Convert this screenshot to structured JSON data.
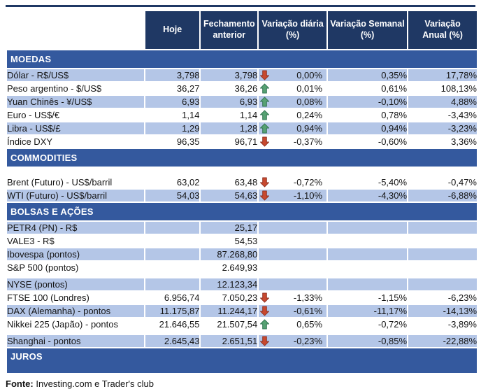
{
  "chart_data": {
    "type": "table",
    "columns": [
      "Hoje",
      "Fechamento\nanterior",
      "Variação diária\n(%)",
      "Variação Semanal\n(%)",
      "Variação\nAnual (%)"
    ],
    "sections": [
      {
        "title": "MOEDAS",
        "spacer_after_title": false,
        "rows": [
          {
            "label": "Dólar - R$/US$",
            "hoje": "3,798",
            "fechamento_anterior": "3,798",
            "direction": "down",
            "variacao_diaria": "0,00%",
            "variacao_semanal": "0,35%",
            "variacao_anual": "17,78%",
            "shaded": true
          },
          {
            "label": "Peso argentino - $/US$",
            "hoje": "36,27",
            "fechamento_anterior": "36,26",
            "direction": "up",
            "variacao_diaria": "0,01%",
            "variacao_semanal": "0,61%",
            "variacao_anual": "108,13%",
            "shaded": false
          },
          {
            "label": "Yuan Chinês - ¥/US$",
            "hoje": "6,93",
            "fechamento_anterior": "6,93",
            "direction": "up",
            "variacao_diaria": "0,08%",
            "variacao_semanal": "-0,10%",
            "variacao_anual": "4,88%",
            "shaded": true
          },
          {
            "label": "Euro - US$/€",
            "hoje": "1,14",
            "fechamento_anterior": "1,14",
            "direction": "up",
            "variacao_diaria": "0,24%",
            "variacao_semanal": "0,78%",
            "variacao_anual": "-3,43%",
            "shaded": false
          },
          {
            "label": "Libra - US$/£",
            "hoje": "1,29",
            "fechamento_anterior": "1,28",
            "direction": "up",
            "variacao_diaria": "0,94%",
            "variacao_semanal": "0,94%",
            "variacao_anual": "-3,23%",
            "shaded": true
          },
          {
            "label": "Índice DXY",
            "hoje": "96,35",
            "fechamento_anterior": "96,71",
            "direction": "down",
            "variacao_diaria": "-0,37%",
            "variacao_semanal": "-0,60%",
            "variacao_anual": "3,36%",
            "shaded": false
          }
        ]
      },
      {
        "title": "COMMODITIES",
        "spacer_after_title": true,
        "rows": [
          {
            "label": "Brent (Futuro) - US$/barril",
            "hoje": "63,02",
            "fechamento_anterior": "63,48",
            "direction": "down",
            "variacao_diaria": "-0,72%",
            "variacao_semanal": "-5,40%",
            "variacao_anual": "-0,47%",
            "shaded": false
          },
          {
            "label": "WTI (Futuro) - US$/barril",
            "hoje": "54,03",
            "fechamento_anterior": "54,63",
            "direction": "down",
            "variacao_diaria": "-1,10%",
            "variacao_semanal": "-4,30%",
            "variacao_anual": "-6,88%",
            "shaded": true
          }
        ]
      },
      {
        "title": "BOLSAS E AÇÕES",
        "spacer_after_title": false,
        "rows": [
          {
            "label": "PETR4 (PN) - R$",
            "hoje": "",
            "fechamento_anterior": "25,17",
            "direction": null,
            "variacao_diaria": "",
            "variacao_semanal": "",
            "variacao_anual": "",
            "shaded": true
          },
          {
            "label": "VALE3 - R$",
            "hoje": "",
            "fechamento_anterior": "54,53",
            "direction": null,
            "variacao_diaria": "",
            "variacao_semanal": "",
            "variacao_anual": "",
            "shaded": false
          },
          {
            "label": "Ibovespa (pontos)",
            "hoje": "",
            "fechamento_anterior": "87.268,80",
            "direction": null,
            "variacao_diaria": "",
            "variacao_semanal": "",
            "variacao_anual": "",
            "shaded": true
          },
          {
            "label": "S&P 500 (pontos)",
            "hoje": "",
            "fechamento_anterior": "2.649,93",
            "direction": null,
            "variacao_diaria": "",
            "variacao_semanal": "",
            "variacao_anual": "",
            "shaded": false
          },
          {
            "label": "NYSE (pontos)",
            "hoje": "",
            "fechamento_anterior": "12.123,34",
            "direction": null,
            "variacao_diaria": "",
            "variacao_semanal": "",
            "variacao_anual": "",
            "shaded": true,
            "gap_before": true
          },
          {
            "label": "FTSE 100 (Londres)",
            "hoje": "6.956,74",
            "fechamento_anterior": "7.050,23",
            "direction": "down",
            "variacao_diaria": "-1,33%",
            "variacao_semanal": "-1,15%",
            "variacao_anual": "-6,23%",
            "shaded": false
          },
          {
            "label": "DAX (Alemanha) - pontos",
            "hoje": "11.175,87",
            "fechamento_anterior": "11.244,17",
            "direction": "down",
            "variacao_diaria": "-0,61%",
            "variacao_semanal": "-11,17%",
            "variacao_anual": "-14,13%",
            "shaded": true
          },
          {
            "label": "Nikkei 225 (Japão) - pontos",
            "hoje": "21.646,55",
            "fechamento_anterior": "21.507,54",
            "direction": "up",
            "variacao_diaria": "0,65%",
            "variacao_semanal": "-0,72%",
            "variacao_anual": "-3,89%",
            "shaded": false
          },
          {
            "label": "Shanghai - pontos",
            "hoje": "2.645,43",
            "fechamento_anterior": "2.651,51",
            "direction": "down",
            "variacao_diaria": "-0,23%",
            "variacao_semanal": "-0,85%",
            "variacao_anual": "-22,88%",
            "shaded": true,
            "gap_before": true
          }
        ]
      },
      {
        "title": "JUROS",
        "spacer_after_title": false,
        "tall": true,
        "rows": []
      }
    ]
  },
  "footer": {
    "label": "Fonte:",
    "text": " Investing.com e Trader's club"
  },
  "colors": {
    "header_bg": "#1F3864",
    "section_bg": "#34599E",
    "row_blue": "#B4C6E7",
    "arrow_up": "#57A273",
    "arrow_down": "#C8492F"
  },
  "icons": {
    "up": "up-arrow-icon",
    "down": "down-arrow-icon"
  }
}
